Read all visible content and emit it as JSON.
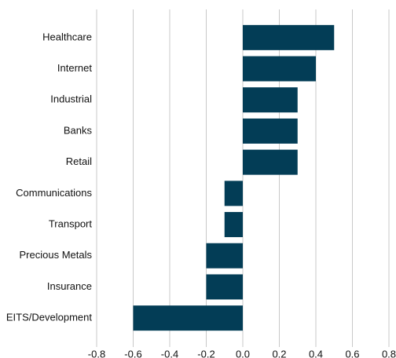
{
  "chart_data": {
    "type": "barh",
    "categories": [
      "Healthcare",
      "Internet",
      "Industrial",
      "Banks",
      "Retail",
      "Communications",
      "Transport",
      "Precious Metals",
      "Insurance",
      "EITS/Development"
    ],
    "values": [
      0.5,
      0.4,
      0.3,
      0.3,
      0.3,
      -0.1,
      -0.1,
      -0.2,
      -0.2,
      -0.6
    ],
    "color": "#033d56",
    "xlim": [
      -0.8,
      0.8
    ],
    "xticks": [
      -0.8,
      -0.6,
      -0.4,
      -0.2,
      {
        "value": 0,
        "label": "0.0"
      },
      0.2,
      0.4,
      0.6,
      0.8
    ],
    "grid": true
  }
}
